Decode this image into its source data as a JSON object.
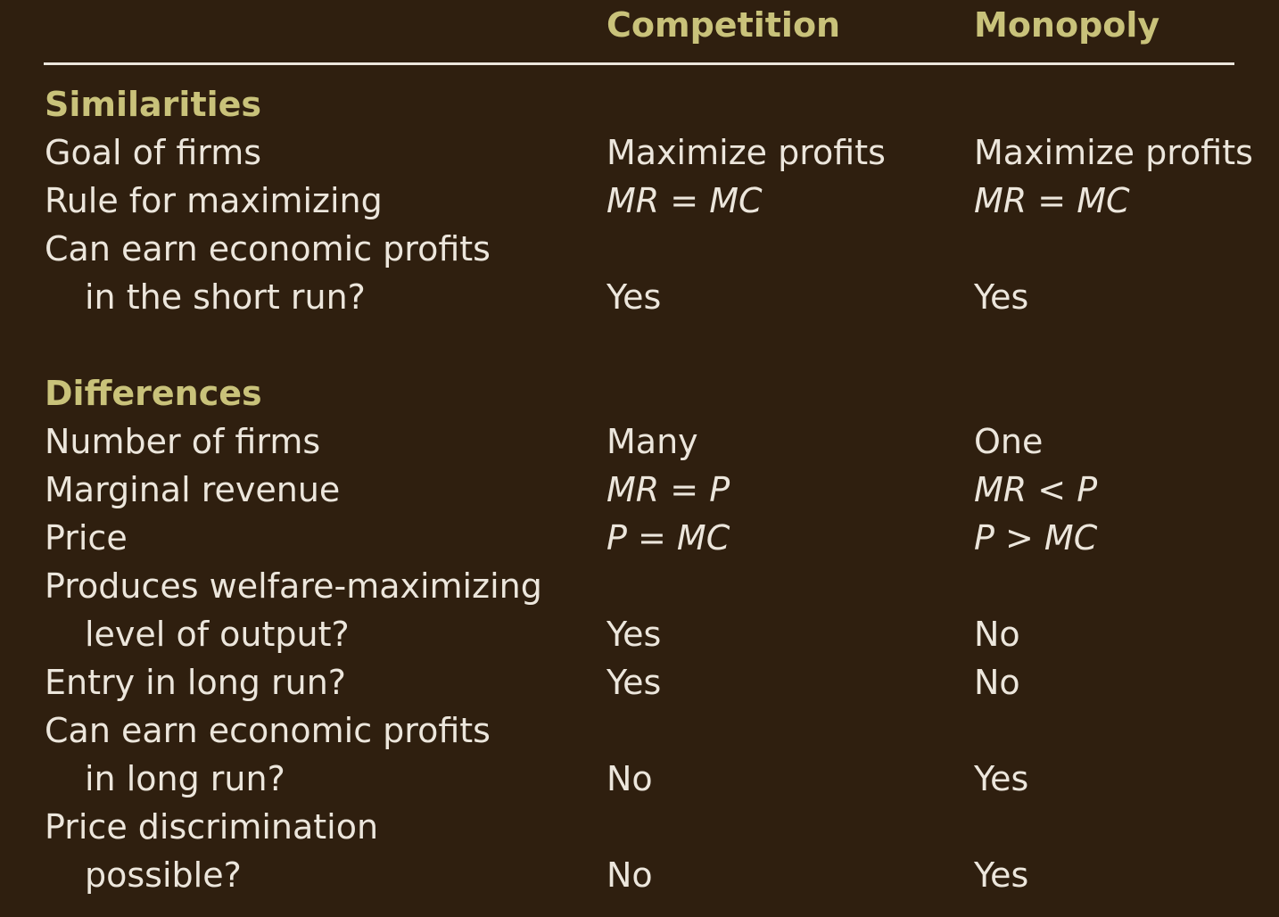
{
  "colors": {
    "background": "#2f1f0f",
    "heading": "#c9c27a",
    "text": "#ece6dc"
  },
  "headers": {
    "competition": "Competition",
    "monopoly": "Monopoly"
  },
  "sections": [
    {
      "title": "Similarities",
      "rows": [
        {
          "label": "Goal of firms",
          "competition": "Maximize profits",
          "monopoly": "Maximize profits"
        },
        {
          "label": "Rule for maximizing",
          "competition": "MR = MC",
          "monopoly": "MR = MC"
        },
        {
          "label": "Can earn economic profits"
        },
        {
          "label": "in the short run?",
          "competition": "Yes",
          "monopoly": "Yes"
        }
      ]
    },
    {
      "title": "Differences",
      "rows": [
        {
          "label": "Number of firms",
          "competition": "Many",
          "monopoly": "One"
        },
        {
          "label": "Marginal revenue",
          "competition": "MR = P",
          "monopoly": "MR < P"
        },
        {
          "label": "Price",
          "competition": "P = MC",
          "monopoly": "P > MC"
        },
        {
          "label": "Produces welfare-maximizing"
        },
        {
          "label": "level of output?",
          "competition": "Yes",
          "monopoly": "No"
        },
        {
          "label": "Entry in long run?",
          "competition": "Yes",
          "monopoly": "No"
        },
        {
          "label": "Can earn economic profits"
        },
        {
          "label": "in long run?",
          "competition": "No",
          "monopoly": "Yes"
        },
        {
          "label": "Price discrimination"
        },
        {
          "label": "possible?",
          "competition": "No",
          "monopoly": "Yes"
        }
      ]
    }
  ]
}
